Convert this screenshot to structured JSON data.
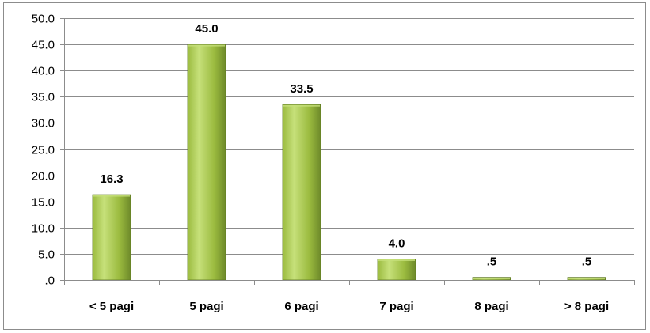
{
  "chart_data": {
    "type": "bar",
    "categories": [
      "< 5 pagi",
      "5 pagi",
      "6 pagi",
      "7 pagi",
      "8 pagi",
      "> 8 pagi"
    ],
    "values": [
      16.3,
      45.0,
      33.5,
      4.0,
      0.5,
      0.5
    ],
    "data_labels": [
      "16.3",
      "45.0",
      "33.5",
      "4.0",
      ".5",
      ".5"
    ],
    "ylim": [
      0,
      50
    ],
    "y_ticks": [
      0,
      5,
      10,
      15,
      20,
      25,
      30,
      35,
      40,
      45,
      50
    ],
    "y_tick_labels": [
      ".0",
      "5.0",
      "10.0",
      "15.0",
      "20.0",
      "25.0",
      "30.0",
      "35.0",
      "40.0",
      "45.0",
      "50.0"
    ],
    "title": "",
    "xlabel": "",
    "ylabel": "",
    "grid": true,
    "legend": "none",
    "colors": {
      "bar_light": "#c6e07a",
      "bar_mid": "#9bbb3f",
      "bar_dark": "#6e8a2a",
      "bar_border": "#5f7a22",
      "grid": "#8c8c8c",
      "axis": "#8c8c8c"
    }
  }
}
